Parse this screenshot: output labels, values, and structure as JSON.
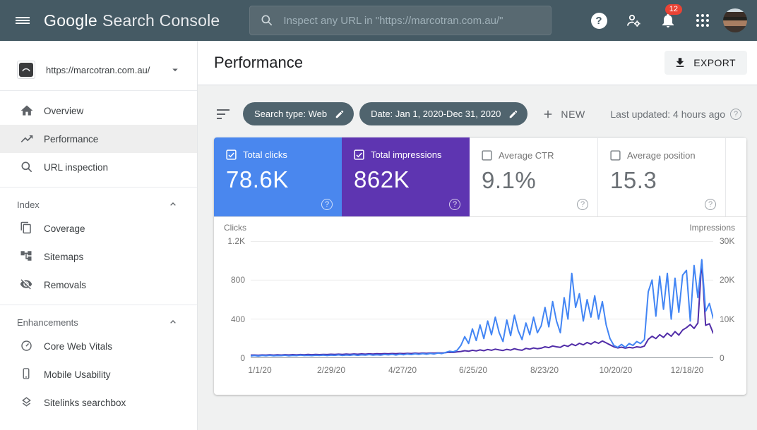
{
  "topbar": {
    "logo": {
      "google": "Google",
      "product": "Search Console"
    },
    "search": {
      "placeholder": "Inspect any URL in \"https://marcotran.com.au/\""
    },
    "notification_count": "12"
  },
  "sidebar": {
    "property": {
      "url": "https://marcotran.com.au/"
    },
    "items": [
      {
        "label": "Overview",
        "icon": "home-icon",
        "selected": false
      },
      {
        "label": "Performance",
        "icon": "trending-up-icon",
        "selected": true
      },
      {
        "label": "URL inspection",
        "icon": "search-icon",
        "selected": false
      }
    ],
    "sections": [
      {
        "title": "Index",
        "items": [
          {
            "label": "Coverage",
            "icon": "pages-icon"
          },
          {
            "label": "Sitemaps",
            "icon": "sitemap-icon"
          },
          {
            "label": "Removals",
            "icon": "visibility-off-icon"
          }
        ]
      },
      {
        "title": "Enhancements",
        "items": [
          {
            "label": "Core Web Vitals",
            "icon": "speedometer-icon"
          },
          {
            "label": "Mobile Usability",
            "icon": "smartphone-icon"
          },
          {
            "label": "Sitelinks searchbox",
            "icon": "layers-icon"
          }
        ]
      }
    ]
  },
  "header": {
    "title": "Performance",
    "export_label": "EXPORT"
  },
  "filters": {
    "chips": [
      {
        "label": "Search type: Web"
      },
      {
        "label": "Date: Jan 1, 2020-Dec 31, 2020"
      }
    ],
    "new_label": "NEW",
    "last_updated": "Last updated: 4 hours ago"
  },
  "metrics": {
    "cards": [
      {
        "label": "Total clicks",
        "value": "78.6K",
        "checked": true,
        "color": "#4a87ee"
      },
      {
        "label": "Total impressions",
        "value": "862K",
        "checked": true,
        "color": "#5e35b1"
      },
      {
        "label": "Average CTR",
        "value": "9.1%",
        "checked": false,
        "color": "#ffffff"
      },
      {
        "label": "Average position",
        "value": "15.3",
        "checked": false,
        "color": "#ffffff"
      }
    ]
  },
  "chart_data": {
    "type": "line",
    "title": "Clicks and impressions over time (daily, Jan 1 2020 - Dec 31 2020)",
    "grid": true,
    "legend_position": "none",
    "x_ticks": [
      "1/1/20",
      "2/29/20",
      "4/27/20",
      "6/25/20",
      "8/23/20",
      "10/20/20",
      "12/18/20"
    ],
    "left_axis": {
      "label": "Clicks",
      "ticks": [
        "1.2K",
        "800",
        "400",
        "0"
      ],
      "max": 1200
    },
    "right_axis": {
      "label": "Impressions",
      "ticks": [
        "30K",
        "20K",
        "10K",
        "0"
      ],
      "max": 30000
    },
    "series": [
      {
        "name": "Clicks",
        "axis": "left",
        "color": "#4285f4",
        "values": [
          22,
          26,
          21,
          27,
          24,
          28,
          23,
          26,
          25,
          29,
          24,
          27,
          25,
          30,
          26,
          28,
          25,
          29,
          27,
          31,
          26,
          30,
          28,
          33,
          27,
          32,
          29,
          34,
          28,
          33,
          30,
          36,
          31,
          35,
          30,
          37,
          33,
          38,
          32,
          40,
          34,
          42,
          36,
          44,
          38,
          46,
          40,
          48,
          42,
          52,
          46,
          58,
          70,
          64,
          80,
          130,
          220,
          150,
          300,
          180,
          340,
          200,
          380,
          240,
          420,
          260,
          170,
          390,
          230,
          440,
          280,
          190,
          360,
          240,
          420,
          260,
          330,
          520,
          320,
          580,
          380,
          260,
          620,
          400,
          870,
          520,
          660,
          380,
          600,
          420,
          640,
          400,
          580,
          340,
          200,
          130,
          110,
          140,
          110,
          150,
          130,
          170,
          150,
          190,
          680,
          800,
          430,
          840,
          500,
          870,
          400,
          820,
          470,
          850,
          900,
          380,
          950,
          620,
          1010,
          480,
          560,
          410
        ]
      },
      {
        "name": "Impressions",
        "axis": "right",
        "color": "#512da8",
        "values": [
          750,
          800,
          730,
          820,
          770,
          850,
          780,
          870,
          800,
          880,
          820,
          900,
          840,
          920,
          860,
          940,
          880,
          950,
          900,
          960,
          920,
          990,
          940,
          1010,
          960,
          1040,
          980,
          1060,
          1000,
          1090,
          1020,
          1110,
          1050,
          1130,
          1080,
          1160,
          1100,
          1180,
          1120,
          1200,
          1150,
          1230,
          1180,
          1260,
          1200,
          1290,
          1230,
          1320,
          1260,
          1360,
          1300,
          1400,
          1500,
          1450,
          1600,
          1700,
          1900,
          1750,
          2000,
          1850,
          2100,
          1900,
          2200,
          2000,
          2300,
          2100,
          1950,
          2250,
          2050,
          2400,
          2150,
          2000,
          2500,
          2300,
          2600,
          2400,
          2550,
          2900,
          2700,
          3100,
          2900,
          2750,
          3300,
          3000,
          3600,
          3200,
          3800,
          3400,
          4000,
          3600,
          4200,
          3800,
          4400,
          3900,
          3400,
          2900,
          2600,
          2800,
          2550,
          2750,
          2600,
          2900,
          2750,
          3100,
          4800,
          5600,
          5000,
          6000,
          5300,
          6400,
          5600,
          6800,
          5900,
          7200,
          7800,
          8600,
          7600,
          9000,
          25000,
          8400,
          8800,
          6400
        ]
      }
    ]
  }
}
